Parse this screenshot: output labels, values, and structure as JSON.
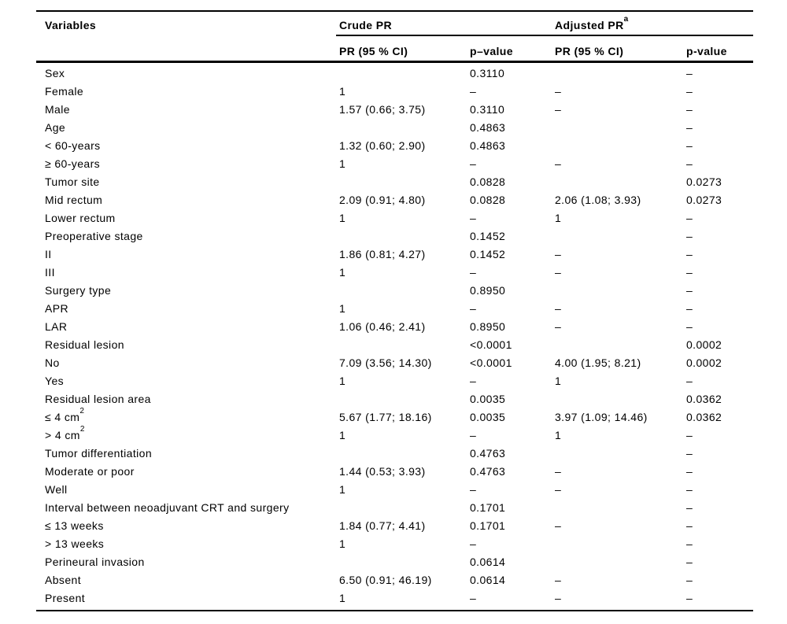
{
  "page": {
    "background": "#ffffff",
    "text_color": "#000000",
    "rule_color": "#000000"
  },
  "table": {
    "header": {
      "variables": "Variables",
      "crude_group": "Crude PR",
      "adjusted_group": "Adjusted PR",
      "adjusted_group_sup": "a",
      "sub": {
        "crude_pr_ci": "PR (95 % CI)",
        "crude_p": "p–value",
        "adjusted_pr_ci": "PR (95 % CI)",
        "adjusted_p": "p-value"
      }
    },
    "rows": [
      {
        "label": "Sex",
        "sup": "",
        "crude_pr": "",
        "crude_p": "0.3110",
        "adj_pr": "",
        "adj_p": "–"
      },
      {
        "label": "Female",
        "sup": "",
        "crude_pr": "1",
        "crude_p": "–",
        "adj_pr": "–",
        "adj_p": "–"
      },
      {
        "label": "Male",
        "sup": "",
        "crude_pr": "1.57 (0.66; 3.75)",
        "crude_p": "0.3110",
        "adj_pr": "–",
        "adj_p": "–"
      },
      {
        "label": "Age",
        "sup": "",
        "crude_pr": "",
        "crude_p": "0.4863",
        "adj_pr": "",
        "adj_p": "–"
      },
      {
        "label": "< 60-years",
        "sup": "",
        "crude_pr": "1.32 (0.60; 2.90)",
        "crude_p": "0.4863",
        "adj_pr": "",
        "adj_p": "–"
      },
      {
        "label": "≥ 60-years",
        "sup": "",
        "crude_pr": "1",
        "crude_p": "–",
        "adj_pr": "–",
        "adj_p": "–"
      },
      {
        "label": "Tumor site",
        "sup": "",
        "crude_pr": "",
        "crude_p": "0.0828",
        "adj_pr": "",
        "adj_p": "0.0273"
      },
      {
        "label": "Mid rectum",
        "sup": "",
        "crude_pr": "2.09 (0.91; 4.80)",
        "crude_p": "0.0828",
        "adj_pr": "2.06 (1.08; 3.93)",
        "adj_p": "0.0273"
      },
      {
        "label": "Lower rectum",
        "sup": "",
        "crude_pr": "1",
        "crude_p": "–",
        "adj_pr": "1",
        "adj_p": "–"
      },
      {
        "label": "Preoperative stage",
        "sup": "",
        "crude_pr": "",
        "crude_p": "0.1452",
        "adj_pr": "",
        "adj_p": "–"
      },
      {
        "label": "II",
        "sup": "",
        "crude_pr": "1.86 (0.81; 4.27)",
        "crude_p": "0.1452",
        "adj_pr": "–",
        "adj_p": "–"
      },
      {
        "label": "III",
        "sup": "",
        "crude_pr": "1",
        "crude_p": "–",
        "adj_pr": "–",
        "adj_p": "–"
      },
      {
        "label": "Surgery type",
        "sup": "",
        "crude_pr": "",
        "crude_p": "0.8950",
        "adj_pr": "",
        "adj_p": "–"
      },
      {
        "label": "APR",
        "sup": "",
        "crude_pr": "1",
        "crude_p": "–",
        "adj_pr": "–",
        "adj_p": "–"
      },
      {
        "label": "LAR",
        "sup": "",
        "crude_pr": "1.06 (0.46; 2.41)",
        "crude_p": "0.8950",
        "adj_pr": "–",
        "adj_p": "–"
      },
      {
        "label": "Residual lesion",
        "sup": "",
        "crude_pr": "",
        "crude_p": "<0.0001",
        "adj_pr": "",
        "adj_p": "0.0002"
      },
      {
        "label": "No",
        "sup": "",
        "crude_pr": "7.09 (3.56; 14.30)",
        "crude_p": "<0.0001",
        "adj_pr": "4.00 (1.95; 8.21)",
        "adj_p": "0.0002"
      },
      {
        "label": "Yes",
        "sup": "",
        "crude_pr": "1",
        "crude_p": "–",
        "adj_pr": "1",
        "adj_p": "–"
      },
      {
        "label": "Residual lesion area",
        "sup": "",
        "crude_pr": "",
        "crude_p": "0.0035",
        "adj_pr": "",
        "adj_p": "0.0362"
      },
      {
        "label": "≤ 4 cm",
        "sup": "2",
        "crude_pr": "5.67 (1.77; 18.16)",
        "crude_p": "0.0035",
        "adj_pr": "3.97 (1.09; 14.46)",
        "adj_p": "0.0362"
      },
      {
        "label": "> 4 cm",
        "sup": "2",
        "crude_pr": "1",
        "crude_p": "–",
        "adj_pr": "1",
        "adj_p": "–"
      },
      {
        "label": "Tumor differentiation",
        "sup": "",
        "crude_pr": "",
        "crude_p": "0.4763",
        "adj_pr": "",
        "adj_p": "–"
      },
      {
        "label": "Moderate or poor",
        "sup": "",
        "crude_pr": "1.44 (0.53; 3.93)",
        "crude_p": "0.4763",
        "adj_pr": "–",
        "adj_p": "–"
      },
      {
        "label": "Well",
        "sup": "",
        "crude_pr": "1",
        "crude_p": "–",
        "adj_pr": "–",
        "adj_p": "–"
      },
      {
        "label": "Interval between neoadjuvant CRT and surgery",
        "sup": "",
        "crude_pr": "",
        "crude_p": "0.1701",
        "adj_pr": "",
        "adj_p": "–"
      },
      {
        "label": "≤ 13 weeks",
        "sup": "",
        "crude_pr": "1.84 (0.77; 4.41)",
        "crude_p": "0.1701",
        "adj_pr": "–",
        "adj_p": "–"
      },
      {
        "label": "> 13 weeks",
        "sup": "",
        "crude_pr": "1",
        "crude_p": "–",
        "adj_pr": "",
        "adj_p": "–"
      },
      {
        "label": "Perineural invasion",
        "sup": "",
        "crude_pr": "",
        "crude_p": "0.0614",
        "adj_pr": "",
        "adj_p": "–"
      },
      {
        "label": "Absent",
        "sup": "",
        "crude_pr": "6.50 (0.91; 46.19)",
        "crude_p": "0.0614",
        "adj_pr": "–",
        "adj_p": "–"
      },
      {
        "label": "Present",
        "sup": "",
        "crude_pr": "1",
        "crude_p": "–",
        "adj_pr": "–",
        "adj_p": "–"
      }
    ]
  }
}
